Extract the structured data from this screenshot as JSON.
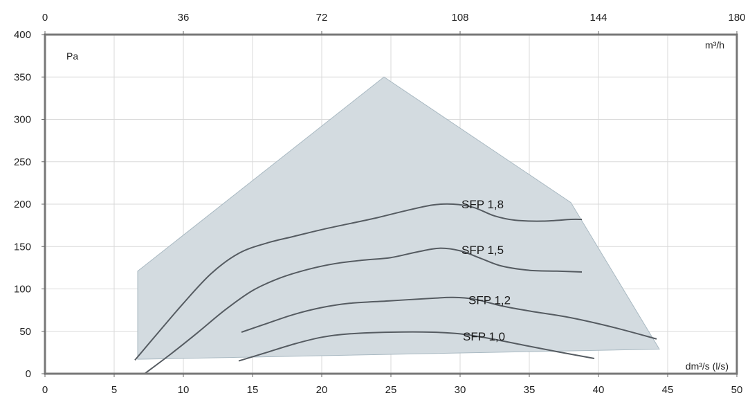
{
  "chart_data": {
    "type": "line",
    "title": "",
    "xlabel": "dm³/s (l/s)",
    "x2label": "m³/h",
    "ylabel": "Pa",
    "xlim": [
      0,
      50
    ],
    "x2lim": [
      0,
      180
    ],
    "ylim": [
      0,
      400
    ],
    "x_ticks": [
      0,
      5,
      10,
      15,
      20,
      25,
      30,
      35,
      40,
      45,
      50
    ],
    "x2_ticks": [
      0,
      36,
      72,
      108,
      144,
      180
    ],
    "y_ticks": [
      0,
      50,
      100,
      150,
      200,
      250,
      300,
      350,
      400
    ],
    "grid": true,
    "operating_area": {
      "fill": "#d3dbe0",
      "stroke": "#a9b9c2",
      "points": [
        [
          6.7,
          121
        ],
        [
          24.5,
          350
        ],
        [
          38,
          202
        ],
        [
          44.4,
          29
        ],
        [
          6.7,
          17
        ]
      ]
    },
    "series": [
      {
        "name": "SFP 1,8",
        "label_at": [
          30.1,
          200
        ],
        "points": [
          [
            6.5,
            16
          ],
          [
            8,
            45
          ],
          [
            10,
            83
          ],
          [
            12,
            118
          ],
          [
            14,
            142
          ],
          [
            16,
            154
          ],
          [
            18,
            162
          ],
          [
            20,
            170
          ],
          [
            22,
            177
          ],
          [
            24,
            184
          ],
          [
            26,
            192
          ],
          [
            28,
            199
          ],
          [
            29.5,
            200
          ],
          [
            31,
            196
          ],
          [
            32.5,
            186
          ],
          [
            34,
            181
          ],
          [
            36,
            180
          ],
          [
            38,
            182
          ],
          [
            38.8,
            182
          ]
        ]
      },
      {
        "name": "SFP 1,5",
        "label_at": [
          30.1,
          146
        ],
        "points": [
          [
            7.2,
            0
          ],
          [
            9,
            22
          ],
          [
            11,
            48
          ],
          [
            13,
            75
          ],
          [
            15,
            98
          ],
          [
            17,
            113
          ],
          [
            19,
            123
          ],
          [
            21,
            130
          ],
          [
            23,
            134
          ],
          [
            25,
            137
          ],
          [
            27,
            144
          ],
          [
            28.5,
            148
          ],
          [
            30,
            145
          ],
          [
            31.5,
            136
          ],
          [
            33,
            127
          ],
          [
            35,
            122
          ],
          [
            37,
            121
          ],
          [
            38.8,
            120
          ]
        ]
      },
      {
        "name": "SFP 1,2",
        "label_at": [
          30.6,
          87
        ],
        "points": [
          [
            14.2,
            49
          ],
          [
            16,
            59
          ],
          [
            18,
            70
          ],
          [
            20,
            78
          ],
          [
            22,
            83
          ],
          [
            25,
            86
          ],
          [
            28,
            89
          ],
          [
            29.5,
            90
          ],
          [
            31,
            88
          ],
          [
            33,
            80
          ],
          [
            35,
            74
          ],
          [
            38,
            66
          ],
          [
            41,
            55
          ],
          [
            44.2,
            41
          ]
        ]
      },
      {
        "name": "SFP 1,0",
        "label_at": [
          30.2,
          44
        ],
        "points": [
          [
            14,
            15
          ],
          [
            16,
            25
          ],
          [
            18,
            35
          ],
          [
            20,
            43
          ],
          [
            22,
            47
          ],
          [
            25,
            49
          ],
          [
            28,
            49
          ],
          [
            30,
            47
          ],
          [
            32,
            42
          ],
          [
            34.5,
            34
          ],
          [
            37,
            26
          ],
          [
            39.7,
            18
          ]
        ]
      }
    ]
  }
}
